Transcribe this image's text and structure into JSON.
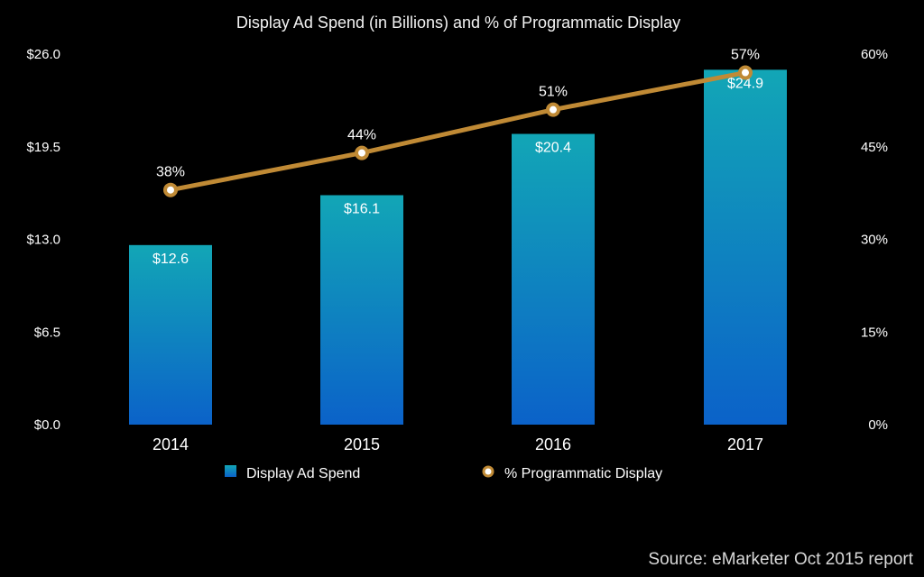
{
  "chart_data": {
    "type": "bar",
    "title": "Display Ad Spend (in Billions) and % of Programmatic Display",
    "categories": [
      "2014",
      "2015",
      "2016",
      "2017"
    ],
    "series": [
      {
        "name": "Display Ad Spend",
        "type": "bar",
        "axis": "left",
        "values": [
          12.6,
          16.1,
          20.4,
          24.9
        ],
        "labels": [
          "$12.6",
          "$16.1",
          "$20.4",
          "$24.9"
        ],
        "color_top": "#12a6b6",
        "color_bottom": "#0b62c9"
      },
      {
        "name": "% Programmatic Display",
        "type": "line",
        "axis": "right",
        "values": [
          38,
          44,
          51,
          57
        ],
        "labels": [
          "38%",
          "44%",
          "51%",
          "57%"
        ],
        "color": "#c08a35"
      }
    ],
    "y_left": {
      "ylim": [
        0,
        26
      ],
      "ticks": [
        0,
        6.5,
        13,
        19.5,
        26
      ],
      "tick_labels": [
        "$0.0",
        "$6.5",
        "$13.0",
        "$19.5",
        "$26.0"
      ]
    },
    "y_right": {
      "ylim": [
        0,
        60
      ],
      "ticks": [
        0,
        15,
        30,
        45,
        60
      ],
      "tick_labels": [
        "0%",
        "15%",
        "30%",
        "45%",
        "60%"
      ]
    },
    "xlabel": "",
    "ylabel": "",
    "grid": false,
    "legend": {
      "placement": "bottom",
      "items": [
        "Display Ad Spend",
        "% Programmatic Display"
      ]
    },
    "annotation": "Source: eMarketer Oct 2015 report"
  }
}
